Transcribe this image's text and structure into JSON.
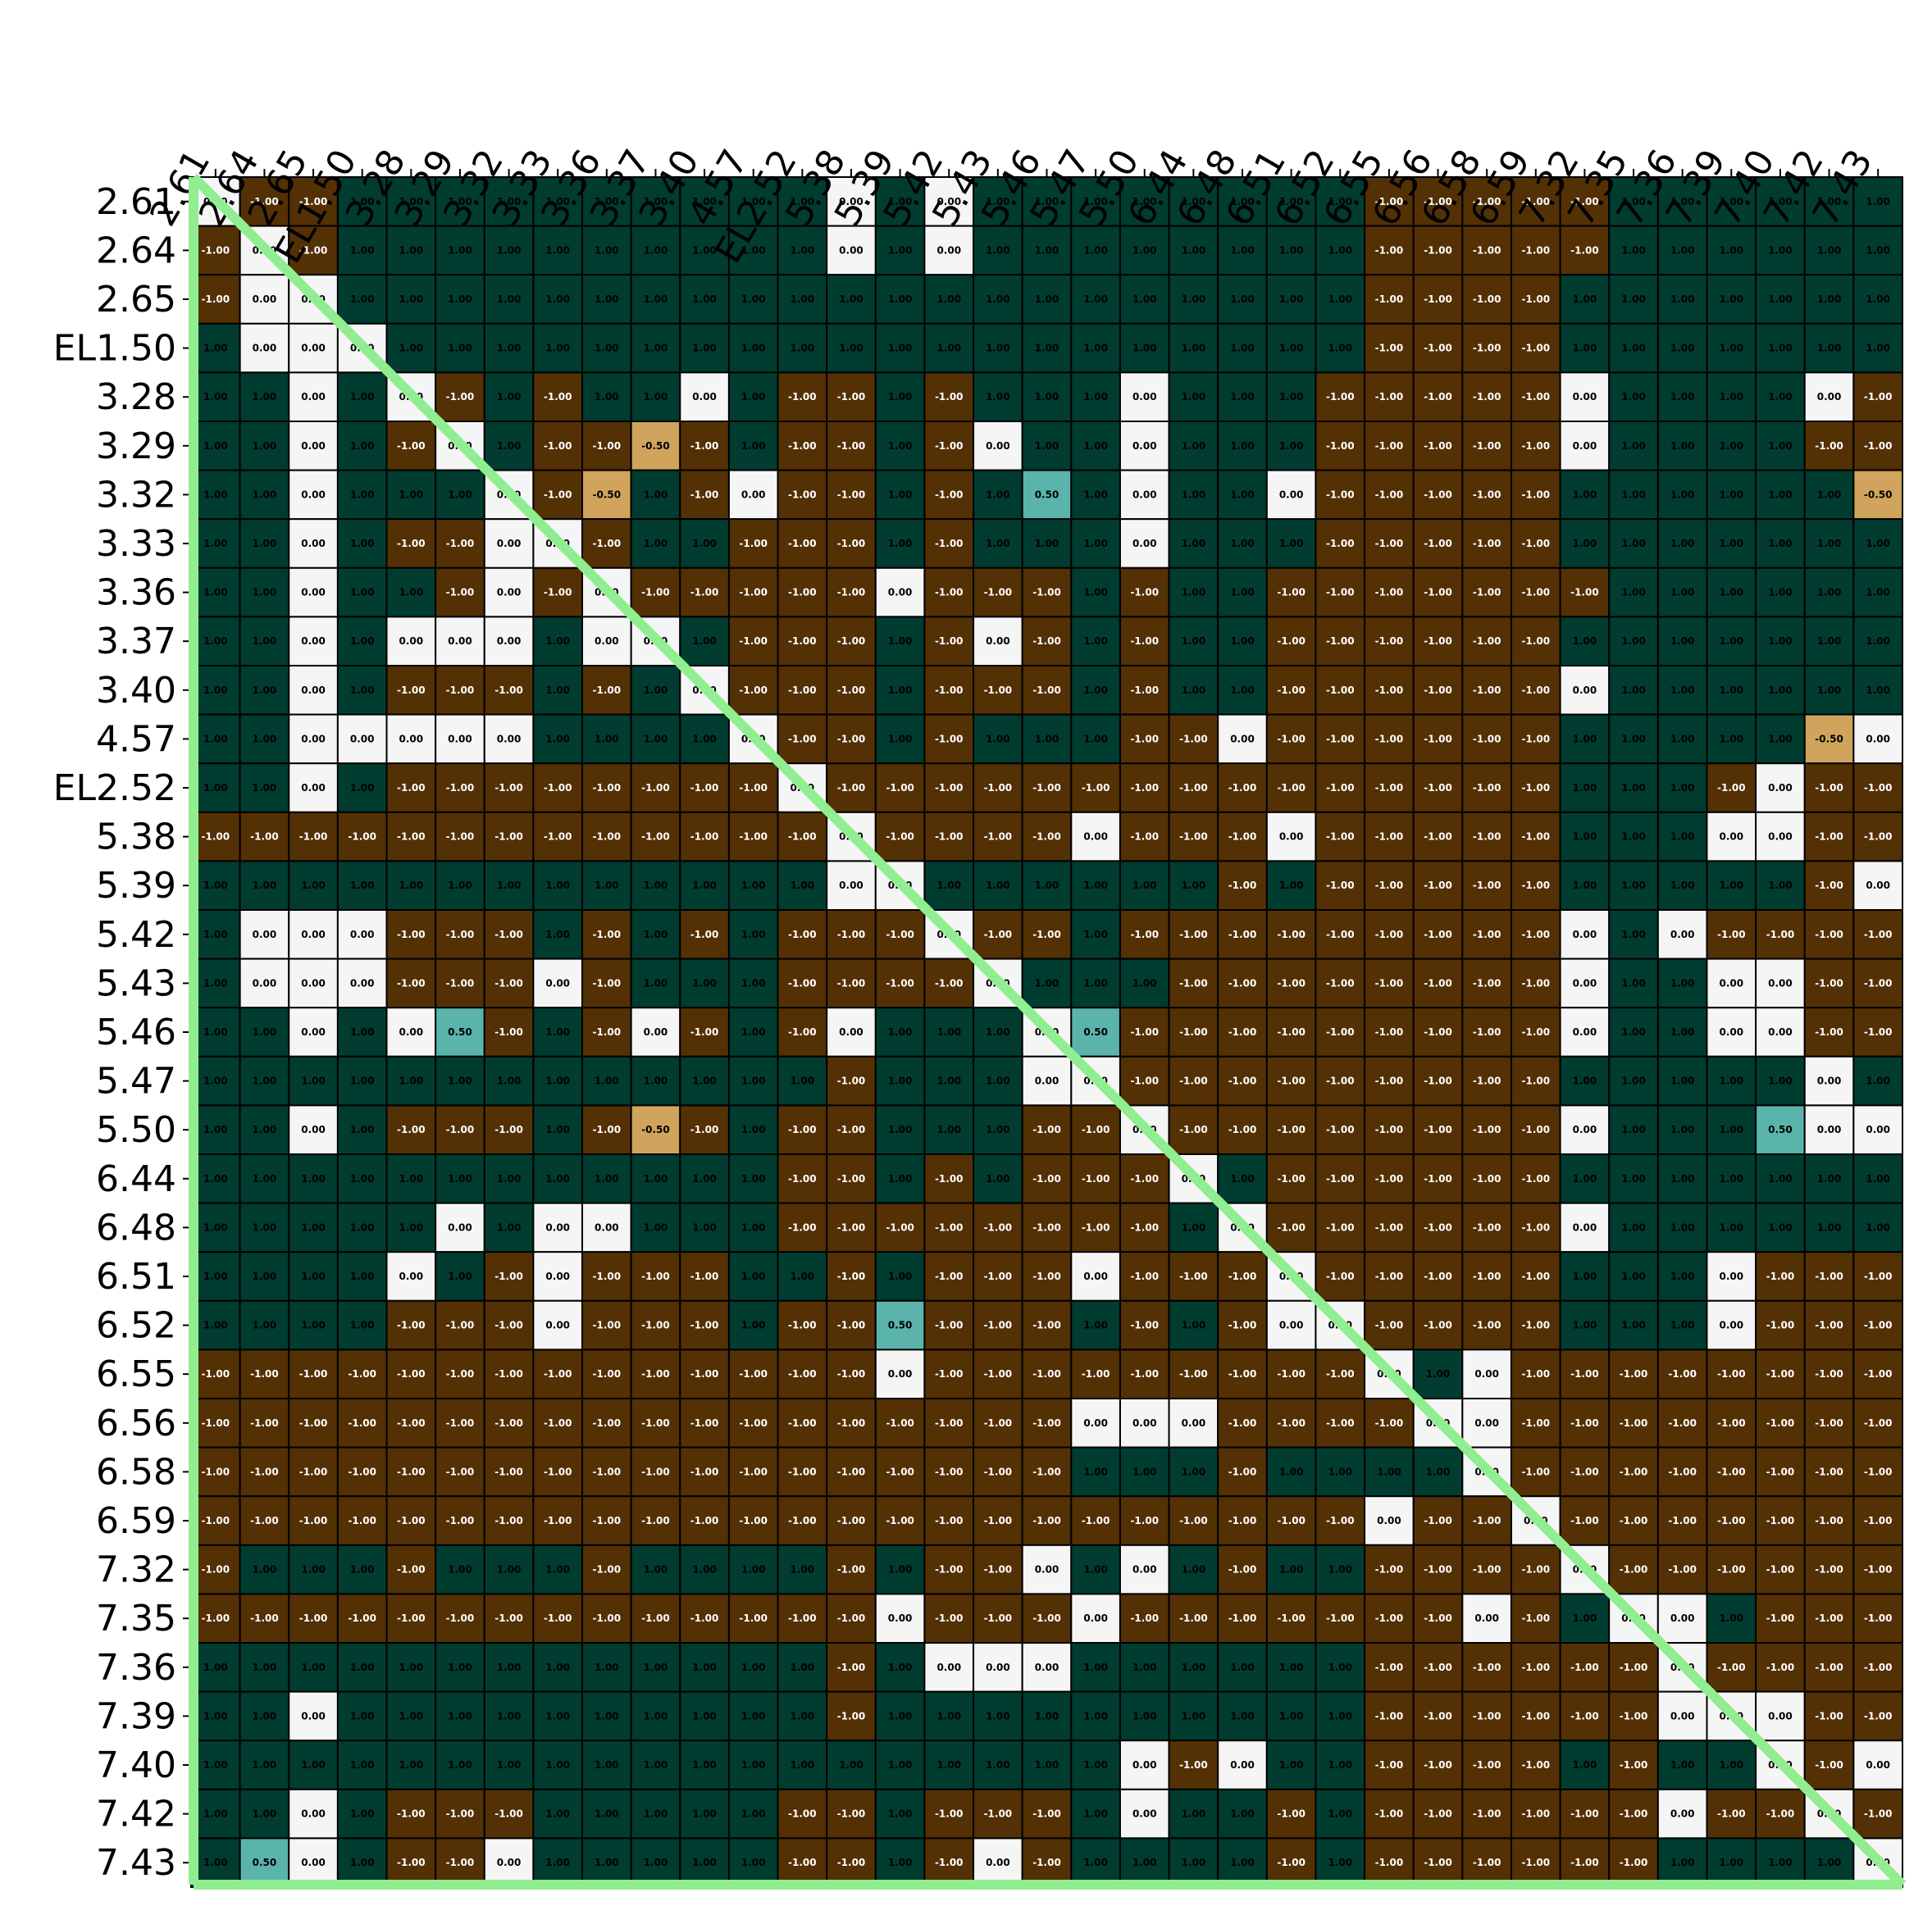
{
  "chart_data": {
    "type": "heatmap",
    "labels": [
      "2.61",
      "2.64",
      "2.65",
      "EL1.50",
      "3.28",
      "3.29",
      "3.32",
      "3.33",
      "3.36",
      "3.37",
      "3.40",
      "4.57",
      "EL2.52",
      "5.38",
      "5.39",
      "5.42",
      "5.43",
      "5.46",
      "5.47",
      "5.50",
      "6.44",
      "6.48",
      "6.51",
      "6.52",
      "6.55",
      "6.56",
      "6.58",
      "6.59",
      "7.32",
      "7.35",
      "7.36",
      "7.39",
      "7.40",
      "7.42",
      "7.43"
    ],
    "colors": {
      "-1": "#543005",
      "-0.5": "#d0a45c",
      "0": "#f5f5f5",
      "0.5": "#5ab4ac",
      "1": "#003c30"
    },
    "diagonal_color": "#90ee90",
    "value_range": [
      -1,
      1
    ],
    "matrix": [
      [
        0,
        -1,
        -1,
        1,
        1,
        1,
        1,
        1,
        1,
        1,
        1,
        1,
        1,
        0,
        1,
        0,
        1,
        1,
        1,
        1,
        1,
        1,
        1,
        1,
        -1,
        -1,
        -1,
        -1,
        -1,
        1,
        1,
        1,
        1,
        1,
        1
      ],
      [
        -1,
        0,
        -1,
        1,
        1,
        1,
        1,
        1,
        1,
        1,
        1,
        1,
        1,
        0,
        1,
        0,
        1,
        1,
        1,
        1,
        1,
        1,
        1,
        1,
        -1,
        -1,
        -1,
        -1,
        -1,
        1,
        1,
        1,
        1,
        1,
        1
      ],
      [
        -1,
        0,
        0,
        1,
        1,
        1,
        1,
        1,
        1,
        1,
        1,
        1,
        1,
        1,
        1,
        1,
        1,
        1,
        1,
        1,
        1,
        1,
        1,
        1,
        -1,
        -1,
        -1,
        -1,
        1,
        1,
        1,
        1,
        1,
        1,
        1
      ],
      [
        1,
        0,
        0,
        0,
        1,
        1,
        1,
        1,
        1,
        1,
        1,
        1,
        1,
        1,
        1,
        1,
        1,
        1,
        1,
        1,
        1,
        1,
        1,
        1,
        -1,
        -1,
        -1,
        -1,
        1,
        1,
        1,
        1,
        1,
        1,
        1
      ],
      [
        1,
        1,
        0,
        1,
        0,
        -1,
        1,
        -1,
        1,
        1,
        0,
        1,
        -1,
        -1,
        1,
        -1,
        1,
        1,
        1,
        0,
        1,
        1,
        1,
        -1,
        -1,
        -1,
        -1,
        -1,
        0,
        1,
        1,
        1,
        1,
        0,
        -1
      ],
      [
        1,
        1,
        0,
        1,
        -1,
        0,
        1,
        -1,
        -1,
        -0.5,
        -1,
        1,
        -1,
        -1,
        1,
        -1,
        0,
        1,
        1,
        0,
        1,
        1,
        1,
        -1,
        -1,
        -1,
        -1,
        -1,
        0,
        1,
        1,
        1,
        1,
        -1,
        -1
      ],
      [
        1,
        1,
        0,
        1,
        1,
        1,
        0,
        -1,
        -0.5,
        1,
        -1,
        0,
        -1,
        -1,
        1,
        -1,
        1,
        0.5,
        1,
        0,
        1,
        1,
        0,
        -1,
        -1,
        -1,
        -1,
        -1,
        1,
        1,
        1,
        1,
        1,
        1,
        -0.5
      ],
      [
        1,
        1,
        0,
        1,
        -1,
        -1,
        0,
        0,
        -1,
        1,
        1,
        -1,
        -1,
        -1,
        1,
        -1,
        1,
        1,
        1,
        0,
        1,
        1,
        1,
        -1,
        -1,
        -1,
        -1,
        -1,
        1,
        1,
        1,
        1,
        1,
        1,
        1
      ],
      [
        1,
        1,
        0,
        1,
        1,
        -1,
        0,
        -1,
        0,
        -1,
        -1,
        -1,
        -1,
        -1,
        0,
        -1,
        -1,
        -1,
        1,
        -1,
        1,
        1,
        -1,
        -1,
        -1,
        -1,
        -1,
        -1,
        -1,
        1,
        1,
        1,
        1,
        1,
        1
      ],
      [
        1,
        1,
        0,
        1,
        0,
        0,
        0,
        1,
        0,
        0,
        1,
        -1,
        -1,
        -1,
        1,
        -1,
        0,
        -1,
        1,
        -1,
        1,
        1,
        -1,
        -1,
        -1,
        -1,
        -1,
        -1,
        1,
        1,
        1,
        1,
        1,
        1,
        1
      ],
      [
        1,
        1,
        0,
        1,
        -1,
        -1,
        -1,
        1,
        -1,
        1,
        0,
        -1,
        -1,
        -1,
        1,
        -1,
        -1,
        -1,
        1,
        -1,
        1,
        1,
        -1,
        -1,
        -1,
        -1,
        -1,
        -1,
        0,
        1,
        1,
        1,
        1,
        1,
        1
      ],
      [
        1,
        1,
        0,
        0,
        0,
        0,
        0,
        1,
        1,
        1,
        1,
        0,
        -1,
        -1,
        1,
        -1,
        1,
        1,
        1,
        -1,
        -1,
        0,
        -1,
        -1,
        -1,
        -1,
        -1,
        -1,
        1,
        1,
        1,
        1,
        1,
        -0.5,
        0
      ],
      [
        1,
        1,
        0,
        1,
        -1,
        -1,
        -1,
        -1,
        -1,
        -1,
        -1,
        -1,
        0,
        -1,
        -1,
        -1,
        -1,
        -1,
        -1,
        -1,
        -1,
        -1,
        -1,
        -1,
        -1,
        -1,
        -1,
        -1,
        1,
        1,
        1,
        -1,
        0,
        -1,
        -1
      ],
      [
        -1,
        -1,
        -1,
        -1,
        -1,
        -1,
        -1,
        -1,
        -1,
        -1,
        -1,
        -1,
        -1,
        0,
        -1,
        -1,
        -1,
        -1,
        0,
        -1,
        -1,
        -1,
        0,
        -1,
        -1,
        -1,
        -1,
        -1,
        1,
        1,
        1,
        0,
        0,
        -1,
        -1
      ],
      [
        1,
        1,
        1,
        1,
        1,
        1,
        1,
        1,
        1,
        1,
        1,
        1,
        1,
        0,
        0,
        1,
        1,
        1,
        1,
        1,
        1,
        -1,
        1,
        -1,
        -1,
        -1,
        -1,
        -1,
        1,
        1,
        1,
        1,
        1,
        -1,
        0
      ],
      [
        1,
        0,
        0,
        0,
        -1,
        -1,
        -1,
        1,
        -1,
        1,
        -1,
        1,
        -1,
        -1,
        -1,
        0,
        -1,
        -1,
        1,
        -1,
        -1,
        -1,
        -1,
        -1,
        -1,
        -1,
        -1,
        -1,
        0,
        1,
        0,
        -1,
        -1,
        -1,
        -1
      ],
      [
        1,
        0,
        0,
        0,
        -1,
        -1,
        -1,
        0,
        -1,
        1,
        1,
        1,
        -1,
        -1,
        -1,
        -1,
        0,
        1,
        1,
        1,
        -1,
        -1,
        -1,
        -1,
        -1,
        -1,
        -1,
        -1,
        0,
        1,
        1,
        0,
        0,
        -1,
        -1
      ],
      [
        1,
        1,
        0,
        1,
        0,
        0.5,
        -1,
        1,
        -1,
        0,
        -1,
        1,
        -1,
        0,
        1,
        1,
        1,
        0,
        0.5,
        -1,
        -1,
        -1,
        -1,
        -1,
        -1,
        -1,
        -1,
        -1,
        0,
        1,
        1,
        0,
        0,
        -1,
        -1
      ],
      [
        1,
        1,
        1,
        1,
        1,
        1,
        1,
        1,
        1,
        1,
        1,
        1,
        1,
        -1,
        1,
        1,
        1,
        0,
        0,
        -1,
        -1,
        -1,
        -1,
        -1,
        -1,
        -1,
        -1,
        -1,
        1,
        1,
        1,
        1,
        1,
        0,
        1
      ],
      [
        1,
        1,
        0,
        1,
        -1,
        -1,
        -1,
        1,
        -1,
        -0.5,
        -1,
        1,
        -1,
        -1,
        1,
        1,
        1,
        -1,
        -1,
        0,
        -1,
        -1,
        -1,
        -1,
        -1,
        -1,
        -1,
        -1,
        0,
        1,
        1,
        1,
        0.5,
        0,
        0
      ],
      [
        1,
        1,
        1,
        1,
        1,
        1,
        1,
        1,
        1,
        1,
        1,
        1,
        -1,
        -1,
        1,
        -1,
        1,
        -1,
        -1,
        -1,
        0,
        1,
        -1,
        -1,
        -1,
        -1,
        -1,
        -1,
        1,
        1,
        1,
        1,
        1,
        1,
        1
      ],
      [
        1,
        1,
        1,
        1,
        1,
        0,
        1,
        0,
        0,
        1,
        1,
        1,
        -1,
        -1,
        -1,
        -1,
        -1,
        -1,
        -1,
        -1,
        1,
        0,
        -1,
        -1,
        -1,
        -1,
        -1,
        -1,
        0,
        1,
        1,
        1,
        1,
        1,
        1
      ],
      [
        1,
        1,
        1,
        1,
        0,
        1,
        -1,
        0,
        -1,
        -1,
        -1,
        1,
        1,
        -1,
        1,
        -1,
        -1,
        -1,
        0,
        -1,
        -1,
        -1,
        0,
        -1,
        -1,
        -1,
        -1,
        -1,
        1,
        1,
        1,
        0,
        -1,
        -1,
        -1
      ],
      [
        1,
        1,
        1,
        1,
        -1,
        -1,
        -1,
        0,
        -1,
        -1,
        -1,
        1,
        -1,
        -1,
        0.5,
        -1,
        -1,
        -1,
        1,
        -1,
        1,
        -1,
        0,
        0,
        -1,
        -1,
        -1,
        -1,
        1,
        1,
        1,
        0,
        -1,
        -1,
        -1
      ],
      [
        -1,
        -1,
        -1,
        -1,
        -1,
        -1,
        -1,
        -1,
        -1,
        -1,
        -1,
        -1,
        -1,
        -1,
        0,
        -1,
        -1,
        -1,
        -1,
        -1,
        -1,
        -1,
        -1,
        -1,
        0,
        1,
        0,
        -1,
        -1,
        -1,
        -1,
        -1,
        -1,
        -1,
        -1
      ],
      [
        -1,
        -1,
        -1,
        -1,
        -1,
        -1,
        -1,
        -1,
        -1,
        -1,
        -1,
        -1,
        -1,
        -1,
        -1,
        -1,
        -1,
        -1,
        0,
        0,
        0,
        -1,
        -1,
        -1,
        -1,
        0,
        0,
        -1,
        -1,
        -1,
        -1,
        -1,
        -1,
        -1,
        -1
      ],
      [
        -1,
        -1,
        -1,
        -1,
        -1,
        -1,
        -1,
        -1,
        -1,
        -1,
        -1,
        -1,
        -1,
        -1,
        -1,
        -1,
        -1,
        -1,
        1,
        1,
        1,
        -1,
        1,
        1,
        1,
        1,
        0,
        -1,
        -1,
        -1,
        -1,
        -1,
        -1,
        -1,
        -1
      ],
      [
        -1,
        -1,
        -1,
        -1,
        -1,
        -1,
        -1,
        -1,
        -1,
        -1,
        -1,
        -1,
        -1,
        -1,
        -1,
        -1,
        -1,
        -1,
        -1,
        -1,
        -1,
        -1,
        -1,
        -1,
        0,
        -1,
        -1,
        0,
        -1,
        -1,
        -1,
        -1,
        -1,
        -1,
        -1
      ],
      [
        -1,
        1,
        1,
        1,
        -1,
        1,
        1,
        1,
        -1,
        1,
        1,
        1,
        1,
        -1,
        1,
        -1,
        -1,
        0,
        1,
        0,
        1,
        -1,
        1,
        1,
        -1,
        -1,
        -1,
        -1,
        0,
        -1,
        -1,
        -1,
        -1,
        -1,
        -1
      ],
      [
        -1,
        -1,
        -1,
        -1,
        -1,
        -1,
        -1,
        -1,
        -1,
        -1,
        -1,
        -1,
        -1,
        -1,
        0,
        -1,
        -1,
        -1,
        0,
        -1,
        -1,
        -1,
        -1,
        -1,
        -1,
        -1,
        0,
        -1,
        1,
        0,
        0,
        1,
        -1,
        -1,
        -1
      ],
      [
        1,
        1,
        1,
        1,
        1,
        1,
        1,
        1,
        1,
        1,
        1,
        1,
        1,
        -1,
        1,
        0,
        0,
        0,
        1,
        1,
        1,
        1,
        1,
        1,
        -1,
        -1,
        -1,
        -1,
        -1,
        -1,
        0,
        -1,
        -1,
        -1,
        -1
      ],
      [
        1,
        1,
        0,
        1,
        1,
        1,
        1,
        1,
        1,
        1,
        1,
        1,
        1,
        -1,
        1,
        1,
        1,
        1,
        1,
        1,
        1,
        1,
        1,
        1,
        -1,
        -1,
        -1,
        -1,
        -1,
        -1,
        0,
        0,
        0,
        -1,
        -1
      ],
      [
        1,
        1,
        1,
        1,
        1,
        1,
        1,
        1,
        1,
        1,
        1,
        1,
        1,
        1,
        1,
        1,
        1,
        1,
        1,
        0,
        -1,
        0,
        1,
        1,
        -1,
        -1,
        -1,
        -1,
        1,
        -1,
        1,
        1,
        0,
        -1,
        0
      ],
      [
        1,
        1,
        0,
        1,
        -1,
        -1,
        -1,
        1,
        1,
        1,
        1,
        1,
        -1,
        -1,
        1,
        -1,
        -1,
        -1,
        1,
        0,
        1,
        1,
        -1,
        1,
        -1,
        -1,
        -1,
        -1,
        -1,
        -1,
        0,
        -1,
        -1,
        0,
        -1
      ],
      [
        1,
        0.5,
        0,
        1,
        -1,
        -1,
        0,
        1,
        1,
        1,
        1,
        1,
        -1,
        -1,
        1,
        -1,
        0,
        -1,
        1,
        1,
        1,
        1,
        -1,
        1,
        -1,
        -1,
        -1,
        -1,
        -1,
        -1,
        1,
        1,
        1,
        1,
        0
      ]
    ]
  }
}
